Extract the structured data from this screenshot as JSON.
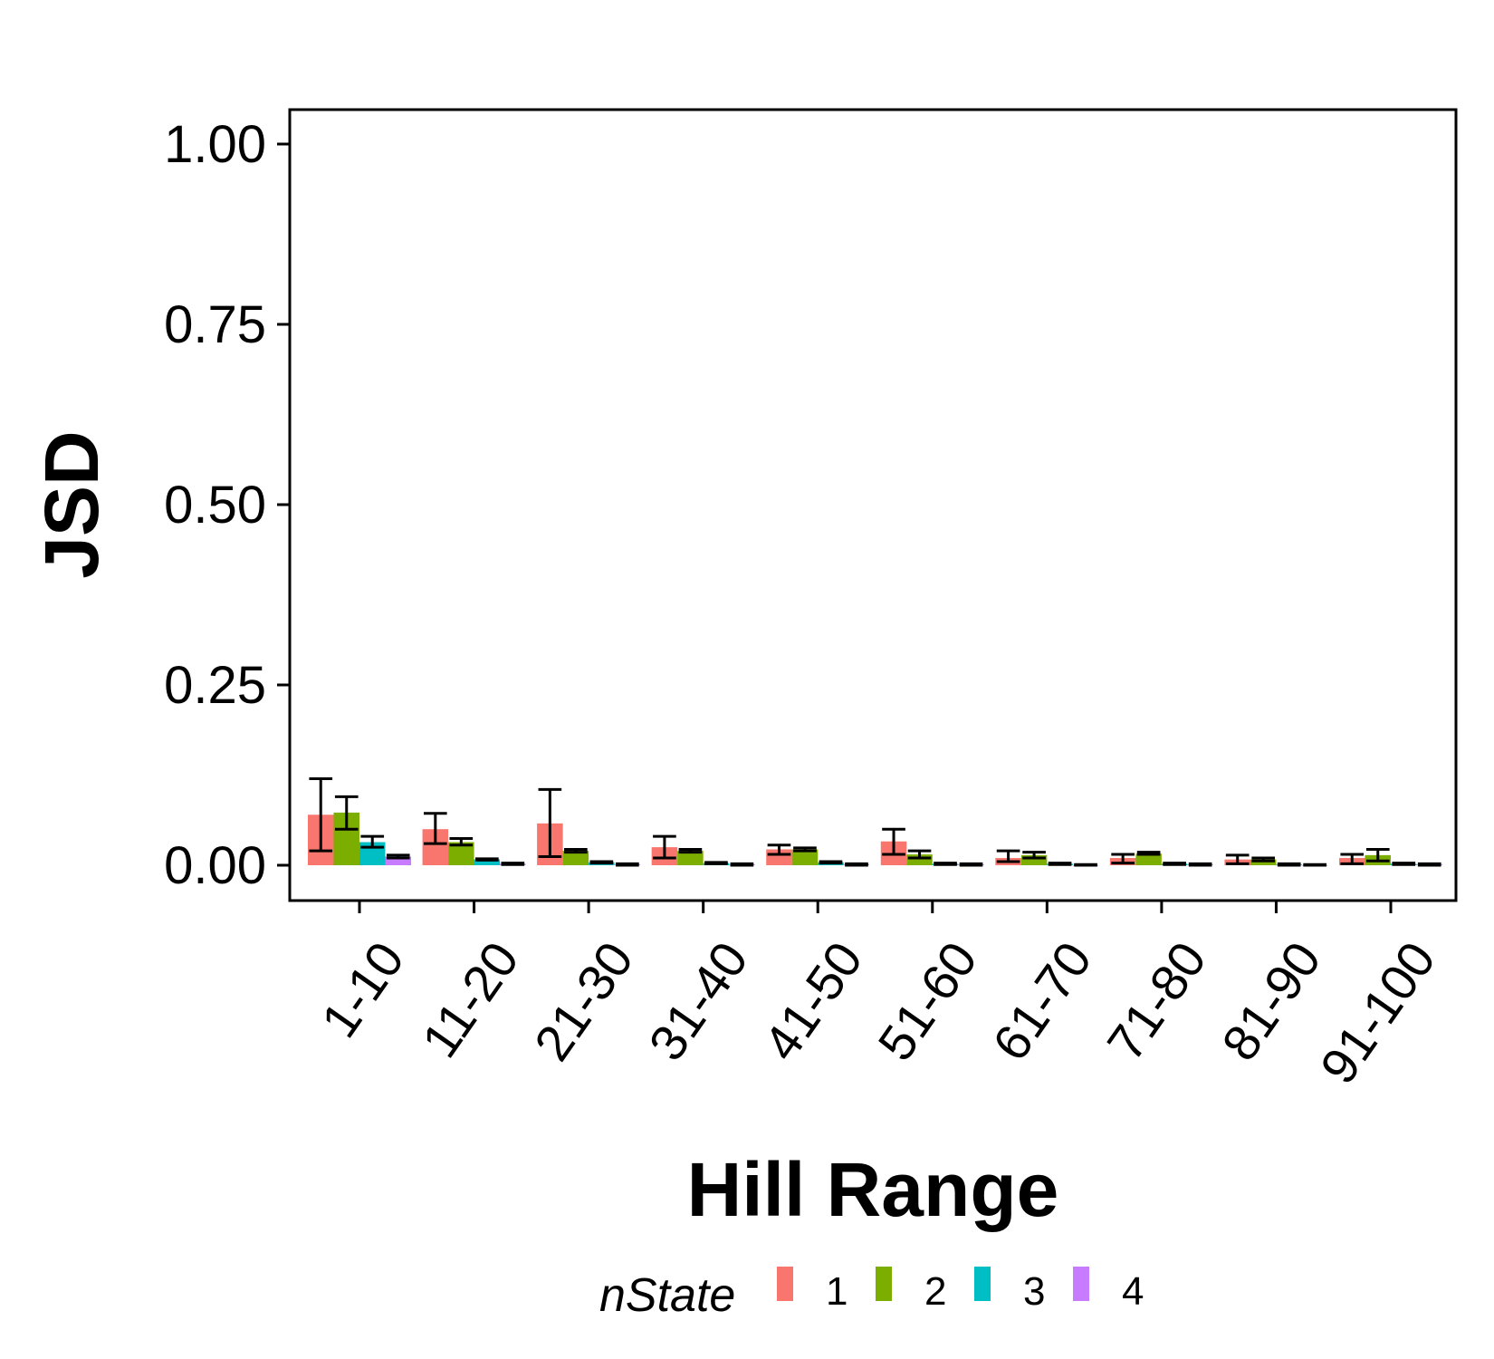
{
  "chart_data": {
    "type": "bar",
    "xlabel": "Hill Range",
    "ylabel": "JSD",
    "ylim": [
      0,
      1.0
    ],
    "yticks": [
      "0.00",
      "0.25",
      "0.50",
      "0.75",
      "1.00"
    ],
    "grid": false,
    "legend_position": "bottom",
    "legend_title": "nState",
    "categories": [
      "1-10",
      "11-20",
      "21-30",
      "31-40",
      "41-50",
      "51-60",
      "61-70",
      "71-80",
      "81-90",
      "91-100"
    ],
    "series": [
      {
        "name": "1",
        "color": "#F8766D",
        "values": [
          0.07,
          0.05,
          0.058,
          0.025,
          0.022,
          0.033,
          0.01,
          0.01,
          0.008,
          0.01
        ],
        "err_low": [
          0.02,
          0.03,
          0.012,
          0.01,
          0.015,
          0.015,
          0.005,
          0.003,
          0.002,
          0.002
        ],
        "err_high": [
          0.12,
          0.072,
          0.105,
          0.04,
          0.028,
          0.05,
          0.02,
          0.015,
          0.014,
          0.015
        ]
      },
      {
        "name": "2",
        "color": "#7CAE00",
        "values": [
          0.073,
          0.032,
          0.02,
          0.02,
          0.022,
          0.015,
          0.014,
          0.016,
          0.008,
          0.014
        ],
        "err_low": [
          0.05,
          0.028,
          0.018,
          0.018,
          0.02,
          0.01,
          0.01,
          0.015,
          0.006,
          0.006
        ],
        "err_high": [
          0.095,
          0.037,
          0.022,
          0.022,
          0.024,
          0.02,
          0.018,
          0.018,
          0.01,
          0.022
        ]
      },
      {
        "name": "3",
        "color": "#00BFC4",
        "values": [
          0.032,
          0.008,
          0.004,
          0.003,
          0.004,
          0.002,
          0.002,
          0.002,
          0.001,
          0.002
        ],
        "err_low": [
          0.025,
          0.007,
          0.003,
          0.002,
          0.003,
          0.001,
          0.001,
          0.001,
          0.0,
          0.001
        ],
        "err_high": [
          0.04,
          0.009,
          0.005,
          0.004,
          0.005,
          0.003,
          0.003,
          0.003,
          0.002,
          0.003
        ]
      },
      {
        "name": "4",
        "color": "#C77CFF",
        "values": [
          0.012,
          0.002,
          0.001,
          0.001,
          0.001,
          0.001,
          0.0,
          0.001,
          0.0,
          0.001
        ],
        "err_low": [
          0.01,
          0.001,
          0.0,
          0.0,
          0.0,
          0.0,
          0.0,
          0.0,
          0.0,
          0.0
        ],
        "err_high": [
          0.014,
          0.003,
          0.002,
          0.002,
          0.002,
          0.002,
          0.001,
          0.002,
          0.001,
          0.002
        ]
      }
    ]
  }
}
